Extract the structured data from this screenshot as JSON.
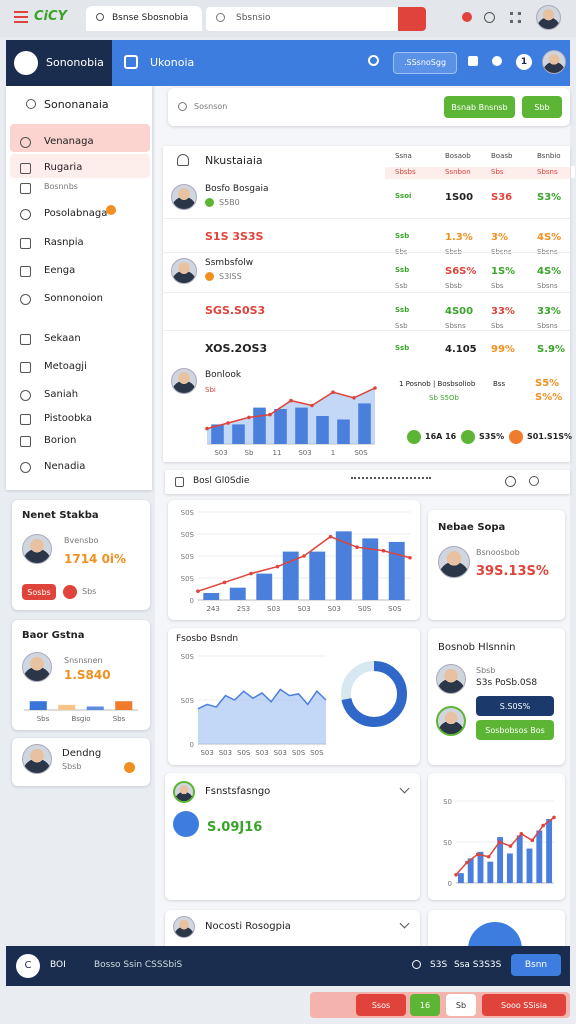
{
  "browser": {
    "logo": "CiCY",
    "tab": "Bsnse Sbosnobia",
    "search": "Sbsnsio"
  },
  "header": {
    "brand": "Sononobia",
    "title": "Ukonoia",
    "button": ".SSsnoSgg",
    "badge": "1"
  },
  "sidebar": {
    "heading": "Sononanaia",
    "items": [
      "Venanaga",
      "Rugaria",
      "Bosnnbs",
      "Posolabnaga",
      "Rasnpia",
      "Eenga",
      "Sonnonoion",
      "Sekaan",
      "Metoagji",
      "Saniah",
      "Pistoobka",
      "Borion",
      "Nenadia"
    ]
  },
  "side_cards": [
    {
      "title": "Nenet Stakba",
      "name": "Bvensbo",
      "value": "1714 0i%",
      "button": "Sosbs",
      "note": "Sbs"
    },
    {
      "title": "Baor Gstna",
      "name": "Snsnsnen",
      "value": "1.S840"
    },
    {
      "title": "Dendng",
      "subtitle": "Sbsb"
    }
  ],
  "search_panel": {
    "placeholder": "Sosnson",
    "button1": "Bsnab Bnsnsb",
    "button2": "Sbb"
  },
  "table": {
    "title": "Nkustaiaia",
    "columns": [
      "Ssna",
      "Bosaob",
      "Boasb",
      "Bsnbio"
    ],
    "subheads": [
      "Sbsbs",
      "Ssnbon",
      "Sbs",
      "Sbsns"
    ],
    "rows": [
      {
        "name": "Bosfo Bosgaia",
        "sub": "S5B0",
        "cells": [
          "Ssoi",
          "1S00",
          "S36",
          "S3%"
        ],
        "notes": [
          "",
          "",
          "",
          ""
        ]
      },
      {
        "name": "S1S 3S3S",
        "cells": [
          "Ssb",
          "1.3%",
          "3%",
          "4S%"
        ],
        "notes": [
          "Sbs",
          "Sbsb",
          "Sbsns",
          "Sbsns"
        ]
      },
      {
        "name": "Ssmbsfolw",
        "sub": "S3ISS",
        "cells": [
          "Ssb",
          "S6S%",
          "1S%",
          "4S%"
        ],
        "notes": [
          "Ssb",
          "Sbsb",
          "Sbs",
          "Sbsns"
        ]
      },
      {
        "name": "SGS.S0S3",
        "cells": [
          "Ssb",
          "4S00",
          "33%",
          "33%"
        ],
        "notes": [
          "Ssb",
          "Sbsns",
          "Sbs",
          "Sbsns"
        ]
      },
      {
        "name": "XOS.2OS3",
        "cells": [
          "Ssb",
          "4.105",
          "99%",
          "S.9%"
        ]
      }
    ],
    "chart_row": {
      "name": "Bonlook",
      "sub": "Sbi",
      "legend": [
        "1 Posnob | Bosbsoliob",
        "Bss",
        "S5%",
        "Sb S5Ob",
        "S%%"
      ]
    },
    "pills": [
      "16A 16",
      "S3S%",
      "S01.S1S%"
    ]
  },
  "panels": {
    "main_title": "Bosl Gl0Sdie",
    "nebae": {
      "title": "Nebae Sopa",
      "name": "Bsnoosbob",
      "value": "39S.13S%"
    },
    "area_title": "Fsosbo Bsndn",
    "bosnob": {
      "title": "Bosnob Hlsnnin",
      "name": "Sbsb",
      "line": "S3s PoSb.0S8",
      "button1": "S.S0S%",
      "button2": "Sosbobsos Bos"
    },
    "fsnst": {
      "title": "Fsnstsfasngo",
      "value": "S.09J16"
    },
    "nocosti": {
      "title": "Nocosti Rosogpia"
    }
  },
  "charts": {
    "mini": {
      "type": "bar",
      "values": [
        28,
        28,
        52,
        50,
        52,
        40,
        35,
        58
      ],
      "line": [
        22,
        30,
        38,
        42,
        62,
        55,
        74,
        66,
        80
      ],
      "area": true,
      "ylim": [
        0,
        100
      ],
      "axis_labels": [
        "S03",
        "Sb",
        "11",
        "S03",
        "1",
        "S0S"
      ],
      "color": "#4a7fdc",
      "line_color": "#e0433b"
    },
    "main": {
      "type": "bar",
      "values": [
        8,
        14,
        30,
        55,
        55,
        78,
        70,
        66
      ],
      "line": [
        10,
        20,
        30,
        38,
        50,
        72,
        60,
        56,
        48
      ],
      "area": false,
      "ylim": [
        0,
        100
      ],
      "yticks": [
        {
          "value": 0,
          "label": "0"
        },
        {
          "value": 25,
          "label": "S0S"
        },
        {
          "value": 50,
          "label": "S0S"
        },
        {
          "value": 75,
          "label": "S0S"
        },
        {
          "value": 100,
          "label": "S0S"
        }
      ],
      "axis_labels": [
        "243",
        "2S3",
        "S03",
        "S03",
        "S03",
        "S0S",
        "S0S"
      ],
      "color": "#4a7fdc",
      "line_color": "#e0433b"
    },
    "area": {
      "type": "line",
      "values": [
        40,
        45,
        42,
        55,
        50,
        60,
        52,
        58,
        48,
        62,
        55,
        57,
        45,
        60,
        50
      ],
      "area": true,
      "ylim": [
        0,
        100
      ],
      "yticks": [
        {
          "value": 0,
          "label": "0"
        },
        {
          "value": 50,
          "label": "S0S"
        },
        {
          "value": 100,
          "label": "S0S"
        }
      ],
      "axis_labels": [
        "S03",
        "S03",
        "S0S",
        "S03",
        "S03",
        "S0S",
        "S0S"
      ],
      "line_color": "#4a7fdc",
      "donut": 72
    },
    "small": {
      "type": "bar",
      "values": [
        12,
        30,
        38,
        26,
        56,
        36,
        58,
        42,
        64,
        78
      ],
      "line": [
        10,
        25,
        35,
        32,
        50,
        45,
        60,
        52,
        70,
        80
      ],
      "area": false,
      "ylim": [
        0,
        100
      ],
      "yticks": [
        {
          "value": 0,
          "label": "0"
        },
        {
          "value": 50,
          "label": "S0"
        },
        {
          "value": 100,
          "label": "S0"
        }
      ],
      "color": "#4a7fdc",
      "line_color": "#e0433b"
    },
    "side": {
      "type": "bar",
      "values": [
        55,
        32,
        22,
        55
      ],
      "colors": [
        "#3b74d9",
        "#f7c58a",
        "#5b8de0",
        "#f07b2a"
      ],
      "ylim": [
        0,
        100
      ],
      "axis_labels": [
        "Sbs",
        "Bsgio",
        "Sbs"
      ]
    }
  },
  "bottom_bar": {
    "icon": "C",
    "code": "BOI",
    "label": "Bosso Ssin CSSSbiS",
    "v1": "S3S",
    "v2": "Ssa S3S3S",
    "button": "Bsnn"
  },
  "float_bar": {
    "b1": "Ssos",
    "b2": "16",
    "b3": "Sb",
    "b4": "Sooo SSisia"
  }
}
